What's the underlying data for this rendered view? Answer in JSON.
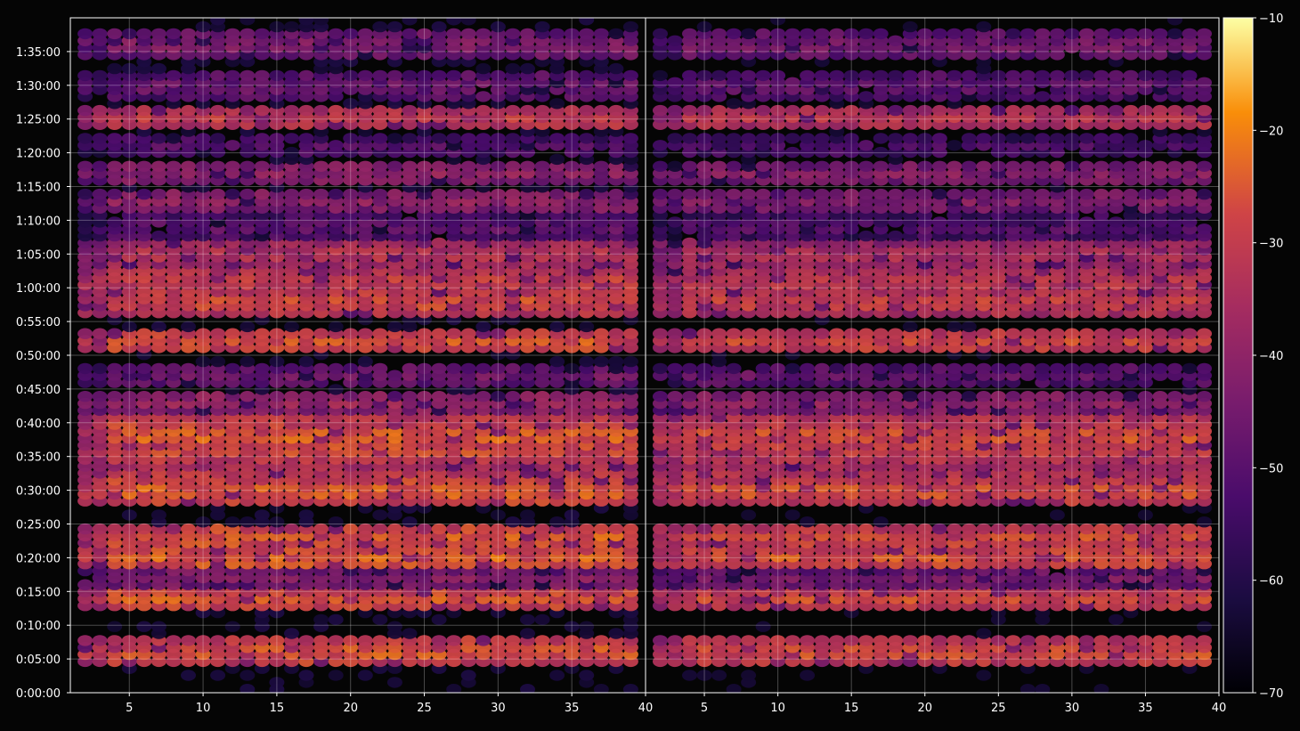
{
  "chart_data": {
    "type": "heatmap",
    "title": "",
    "xlabel": "",
    "ylabel": "",
    "panels": 2,
    "x_range": [
      1,
      40
    ],
    "x_ticks": [
      "5",
      "10",
      "15",
      "20",
      "25",
      "30",
      "35",
      "40"
    ],
    "y_range_seconds": [
      0,
      6000
    ],
    "y_ticks": [
      "0:00:00",
      "0:05:00",
      "0:10:00",
      "0:15:00",
      "0:20:00",
      "0:25:00",
      "0:30:00",
      "0:35:00",
      "0:40:00",
      "0:45:00",
      "0:50:00",
      "0:55:00",
      "1:00:00",
      "1:05:00",
      "1:10:00",
      "1:15:00",
      "1:20:00",
      "1:25:00",
      "1:30:00",
      "1:35:00"
    ],
    "colormap": "inferno",
    "colorbar_range": [
      -70,
      -10
    ],
    "colorbar_ticks": [
      "−10",
      "−20",
      "−30",
      "−40",
      "−50",
      "−60",
      "−70"
    ],
    "grid": true,
    "intensity_by_time_bin": [
      {
        "t": "0:06:00",
        "level": -25
      },
      {
        "t": "0:14:00",
        "level": -26
      },
      {
        "t": "0:17:00",
        "level": -42
      },
      {
        "t": "0:20:00",
        "level": -24
      },
      {
        "t": "0:23:00",
        "level": -25
      },
      {
        "t": "0:30:00",
        "level": -24
      },
      {
        "t": "0:32:00",
        "level": -30
      },
      {
        "t": "0:36:00",
        "level": -27
      },
      {
        "t": "0:38:00",
        "level": -24
      },
      {
        "t": "0:40:00",
        "level": -29
      },
      {
        "t": "0:43:00",
        "level": -38
      },
      {
        "t": "0:47:00",
        "level": -46
      },
      {
        "t": "0:52:00",
        "level": -26
      },
      {
        "t": "0:58:00",
        "level": -27
      },
      {
        "t": "1:01:00",
        "level": -29
      },
      {
        "t": "1:05:00",
        "level": -32
      },
      {
        "t": "1:09:00",
        "level": -48
      },
      {
        "t": "1:13:00",
        "level": -40
      },
      {
        "t": "1:17:00",
        "level": -40
      },
      {
        "t": "1:21:00",
        "level": -50
      },
      {
        "t": "1:25:00",
        "level": -30
      },
      {
        "t": "1:30:00",
        "level": -46
      },
      {
        "t": "1:36:00",
        "level": -42
      }
    ],
    "colors": {
      "background": "#050505",
      "text": "#ffffff",
      "grid": "#ffffff"
    }
  }
}
